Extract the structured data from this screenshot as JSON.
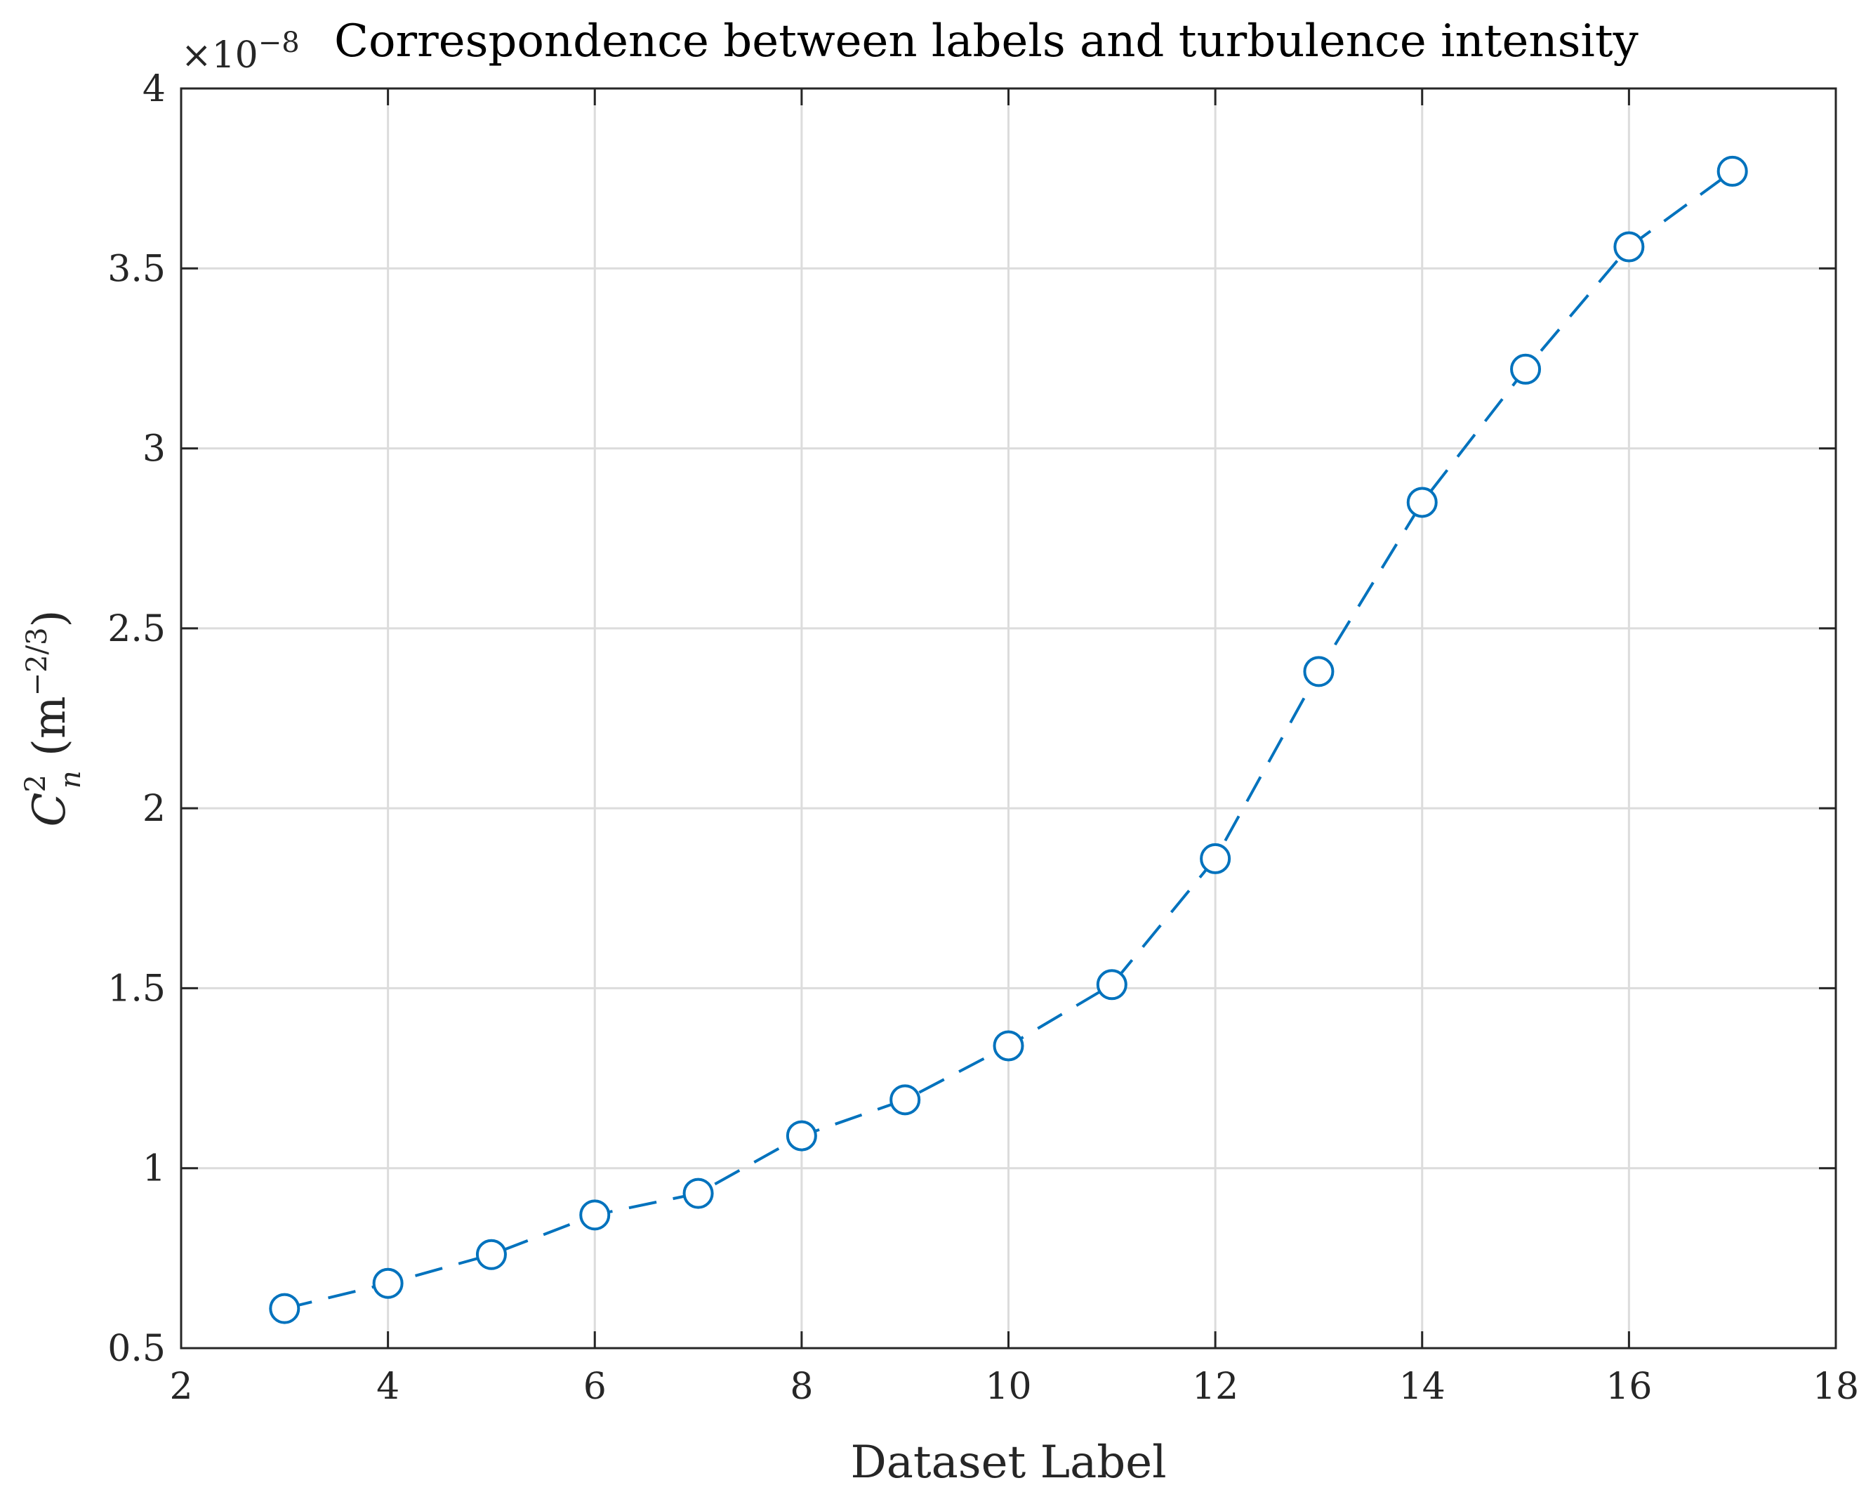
{
  "chart_data": {
    "type": "line",
    "title": "Correspondence between labels and turbulence intensity",
    "xlabel": "Dataset Label",
    "ylabel": {
      "main": "C",
      "superscript": "2",
      "subscript": "n",
      "unit_open": " (m",
      "unit_superscript": "−2/3",
      "unit_close": ")"
    },
    "y_exponent": {
      "prefix": "×10",
      "power": "−8"
    },
    "xlim": [
      2,
      18
    ],
    "ylim": [
      0.5,
      4
    ],
    "xticks": [
      2,
      4,
      6,
      8,
      10,
      12,
      14,
      16,
      18
    ],
    "xtick_labels": [
      "2",
      "4",
      "6",
      "8",
      "10",
      "12",
      "14",
      "16",
      "18"
    ],
    "yticks": [
      0.5,
      1,
      1.5,
      2,
      2.5,
      3,
      3.5,
      4
    ],
    "ytick_labels": [
      "0.5",
      "1",
      "1.5",
      "2",
      "2.5",
      "3",
      "3.5",
      "4"
    ],
    "grid": true,
    "series": [
      {
        "color": "#0072BD",
        "line_style": "dashed",
        "marker": "circle",
        "x": [
          3,
          4,
          5,
          6,
          7,
          8,
          9,
          10,
          11,
          12,
          13,
          14,
          15,
          16,
          17
        ],
        "y": [
          0.61,
          0.68,
          0.76,
          0.87,
          0.93,
          1.09,
          1.19,
          1.34,
          1.51,
          1.86,
          2.38,
          2.85,
          3.22,
          3.56,
          3.77
        ]
      }
    ],
    "colors": {
      "grid": "#dcdcdc",
      "axes": "#262626",
      "series": "#0072BD"
    }
  }
}
